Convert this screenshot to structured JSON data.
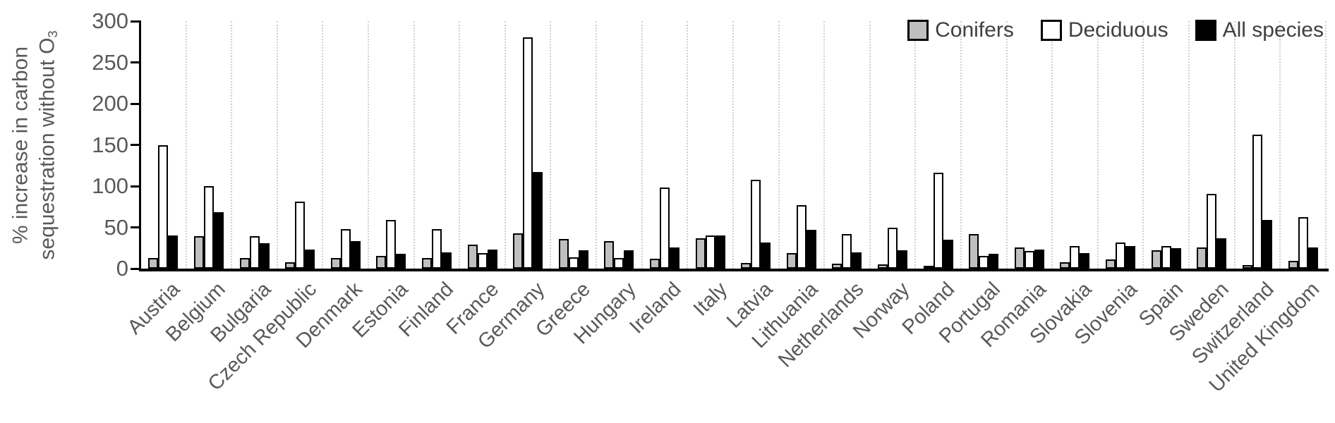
{
  "chart_data": {
    "type": "bar",
    "title": "",
    "ylabel_line1": "% increase in carbon",
    "ylabel_line2": "sequestration without O",
    "ylabel_subscript": "3",
    "xlabel": "",
    "y_axis": {
      "min": 0,
      "max": 300,
      "tick_step": 50,
      "ticks": [
        300,
        250,
        200,
        150,
        100,
        50,
        0
      ]
    },
    "grid": "vertical category separator lines, light gray dotted",
    "legend_position": "top-right inside plot",
    "categories": [
      "Austria",
      "Belgium",
      "Bulgaria",
      "Czech Republic",
      "Denmark",
      "Estonia",
      "Finland",
      "France",
      "Germany",
      "Greece",
      "Hungary",
      "Ireland",
      "Italy",
      "Latvia",
      "Lithuania",
      "Netherlands",
      "Norway",
      "Poland",
      "Portugal",
      "Romania",
      "Slovakia",
      "Slovenia",
      "Spain",
      "Sweden",
      "Switzerland",
      "United Kingdom"
    ],
    "series": [
      {
        "name": "Conifers",
        "color": "#bfbfbf",
        "values": [
          13,
          39,
          13,
          8,
          13,
          15,
          13,
          29,
          43,
          36,
          33,
          12,
          37,
          7,
          19,
          6,
          5,
          2,
          42,
          26,
          8,
          11,
          22,
          26,
          4,
          9
        ]
      },
      {
        "name": "Deciduous",
        "color": "#ffffff",
        "values": [
          150,
          100,
          39,
          81,
          48,
          59,
          48,
          19,
          280,
          14,
          13,
          98,
          40,
          108,
          77,
          42,
          50,
          116,
          15,
          21,
          27,
          32,
          27,
          91,
          162,
          62
        ]
      },
      {
        "name": "All species",
        "color": "#000000",
        "values": [
          40,
          68,
          31,
          23,
          33,
          18,
          20,
          23,
          117,
          22,
          22,
          26,
          40,
          32,
          47,
          20,
          22,
          35,
          18,
          23,
          19,
          27,
          25,
          37,
          59,
          26
        ]
      }
    ]
  },
  "colors": {
    "bar_border": "#000000",
    "axis_line": "#000000",
    "gridline": "#cfcfcf",
    "tick_label_text": "#595959",
    "axis_title_text": "#595959",
    "legend_text": "#404040"
  }
}
